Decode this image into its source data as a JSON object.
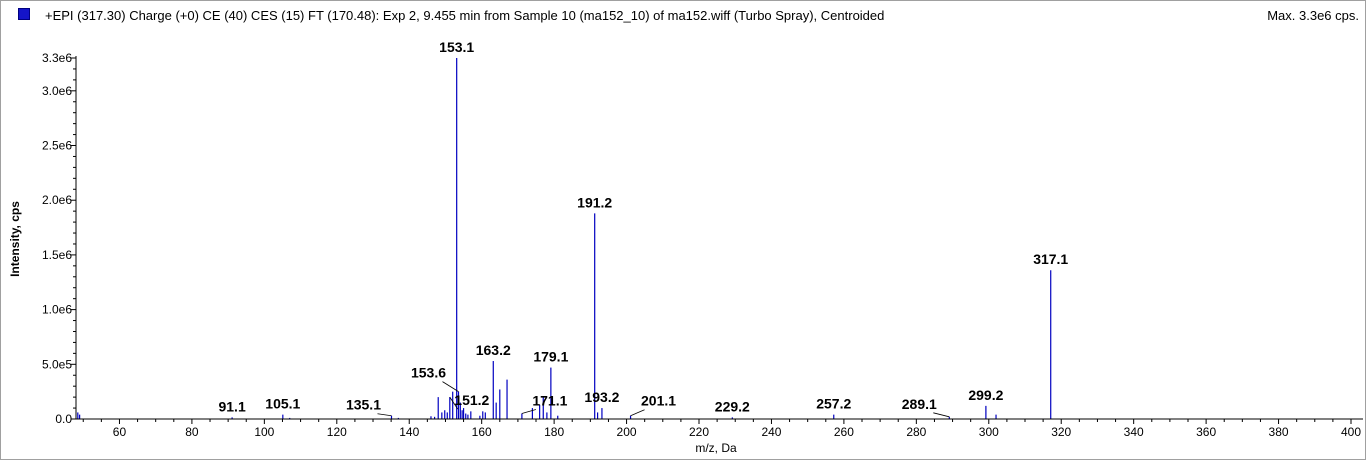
{
  "header": {
    "title": "+EPI (317.30) Charge (+0) CE (40) CES (15) FT (170.48): Exp 2, 9.455 min from Sample 10 (ma152_10) of ma152.wiff (Turbo Spray), Centroided",
    "max_label": "Max. 3.3e6 cps."
  },
  "colors": {
    "series": "#0000c0",
    "axis": "#000000",
    "swatch": "#1414c8"
  },
  "chart_data": {
    "type": "bar",
    "title": "+EPI (317.30) Charge (+0) CE (40) CES (15) FT (170.48): Exp 2, 9.455 min from Sample 10 (ma152_10) of ma152.wiff (Turbo Spray), Centroided",
    "xlabel": "m/z, Da",
    "ylabel": "Intensity, cps",
    "xlim": [
      48,
      400
    ],
    "ylim": [
      0,
      3300000
    ],
    "grid": false,
    "x_ticks": [
      60,
      80,
      100,
      120,
      140,
      160,
      180,
      200,
      220,
      240,
      260,
      280,
      300,
      320,
      340,
      360,
      380,
      400
    ],
    "y_ticks": [
      {
        "value": 0,
        "label": "0.0"
      },
      {
        "value": 500000,
        "label": "5.0e5"
      },
      {
        "value": 1000000,
        "label": "1.0e6"
      },
      {
        "value": 1500000,
        "label": "1.5e6"
      },
      {
        "value": 2000000,
        "label": "2.0e6"
      },
      {
        "value": 2500000,
        "label": "2.5e6"
      },
      {
        "value": 3000000,
        "label": "3.0e6"
      },
      {
        "value": 3300000,
        "label": "3.3e6"
      }
    ],
    "peaks": [
      {
        "mz": 48.5,
        "intensity": 60000
      },
      {
        "mz": 49.0,
        "intensity": 40000
      },
      {
        "mz": 91.1,
        "intensity": 15000
      },
      {
        "mz": 105.1,
        "intensity": 40000
      },
      {
        "mz": 107.0,
        "intensity": 10000
      },
      {
        "mz": 135.1,
        "intensity": 30000
      },
      {
        "mz": 137.0,
        "intensity": 10000
      },
      {
        "mz": 146.0,
        "intensity": 25000
      },
      {
        "mz": 147.0,
        "intensity": 20000
      },
      {
        "mz": 148.0,
        "intensity": 200000
      },
      {
        "mz": 149.0,
        "intensity": 60000
      },
      {
        "mz": 149.8,
        "intensity": 80000
      },
      {
        "mz": 150.5,
        "intensity": 60000
      },
      {
        "mz": 151.2,
        "intensity": 200000
      },
      {
        "mz": 152.0,
        "intensity": 250000
      },
      {
        "mz": 153.1,
        "intensity": 3300000
      },
      {
        "mz": 153.6,
        "intensity": 250000
      },
      {
        "mz": 154.1,
        "intensity": 150000
      },
      {
        "mz": 154.6,
        "intensity": 80000
      },
      {
        "mz": 155.0,
        "intensity": 100000
      },
      {
        "mz": 155.6,
        "intensity": 50000
      },
      {
        "mz": 156.2,
        "intensity": 40000
      },
      {
        "mz": 157.0,
        "intensity": 70000
      },
      {
        "mz": 159.5,
        "intensity": 30000
      },
      {
        "mz": 160.3,
        "intensity": 70000
      },
      {
        "mz": 161.0,
        "intensity": 60000
      },
      {
        "mz": 163.2,
        "intensity": 530000
      },
      {
        "mz": 164.0,
        "intensity": 150000
      },
      {
        "mz": 165.0,
        "intensity": 270000
      },
      {
        "mz": 167.0,
        "intensity": 360000
      },
      {
        "mz": 171.1,
        "intensity": 50000
      },
      {
        "mz": 174.0,
        "intensity": 100000
      },
      {
        "mz": 176.0,
        "intensity": 130000
      },
      {
        "mz": 177.0,
        "intensity": 200000
      },
      {
        "mz": 178.0,
        "intensity": 60000
      },
      {
        "mz": 179.1,
        "intensity": 470000
      },
      {
        "mz": 181.0,
        "intensity": 30000
      },
      {
        "mz": 191.2,
        "intensity": 1880000
      },
      {
        "mz": 192.0,
        "intensity": 60000
      },
      {
        "mz": 193.2,
        "intensity": 100000
      },
      {
        "mz": 201.1,
        "intensity": 30000
      },
      {
        "mz": 229.2,
        "intensity": 15000
      },
      {
        "mz": 257.2,
        "intensity": 40000
      },
      {
        "mz": 289.1,
        "intensity": 20000
      },
      {
        "mz": 299.2,
        "intensity": 120000
      },
      {
        "mz": 302.0,
        "intensity": 40000
      },
      {
        "mz": 317.1,
        "intensity": 1360000
      }
    ],
    "annotations": [
      {
        "text": "153.1",
        "mz": 153.1
      },
      {
        "text": "191.2",
        "mz": 191.2
      },
      {
        "text": "317.1",
        "mz": 317.1
      },
      {
        "text": "163.2",
        "mz": 163.2
      },
      {
        "text": "179.1",
        "mz": 179.1
      },
      {
        "text": "153.6",
        "mz": 153.6
      },
      {
        "text": "151.2",
        "mz": 151.2
      },
      {
        "text": "193.2",
        "mz": 193.2
      },
      {
        "text": "171.1",
        "mz": 171.1
      },
      {
        "text": "201.1",
        "mz": 201.1
      },
      {
        "text": "91.1",
        "mz": 91.1
      },
      {
        "text": "105.1",
        "mz": 105.1
      },
      {
        "text": "135.1",
        "mz": 135.1
      },
      {
        "text": "229.2",
        "mz": 229.2
      },
      {
        "text": "257.2",
        "mz": 257.2
      },
      {
        "text": "289.1",
        "mz": 289.1
      },
      {
        "text": "299.2",
        "mz": 299.2
      }
    ]
  }
}
